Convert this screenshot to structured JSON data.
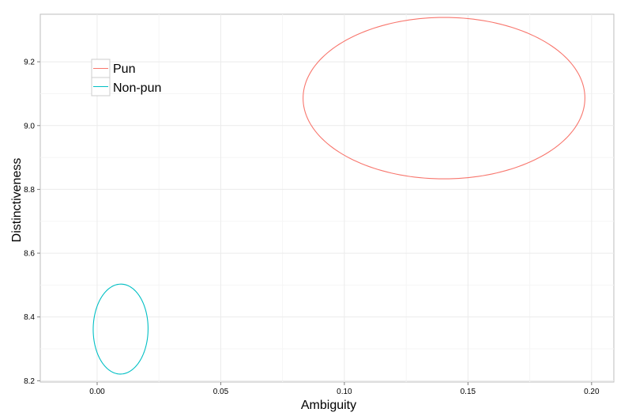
{
  "chart_data": {
    "type": "ellipse",
    "xlabel": "Ambiguity",
    "ylabel": "Distinctiveness",
    "xlim": [
      -0.023,
      0.209
    ],
    "ylim": [
      8.196,
      9.349
    ],
    "x_ticks": [
      0.0,
      0.05,
      0.1,
      0.15,
      0.2
    ],
    "x_tick_labels": [
      "0.00",
      "0.05",
      "0.10",
      "0.15",
      "0.20"
    ],
    "y_ticks": [
      8.2,
      8.4,
      8.6,
      8.8,
      9.0,
      9.2
    ],
    "y_tick_labels": [
      "8.2",
      "8.4",
      "8.6",
      "8.8",
      "9.0",
      "9.2"
    ],
    "grid": true,
    "legend_position": "top-left",
    "series": [
      {
        "name": "Pun",
        "color": "#F8766D",
        "ellipse": {
          "center_x": 0.1403,
          "center_y": 9.086,
          "semi_x": 0.057,
          "semi_y": 0.253,
          "tilt": 0.0064
        }
      },
      {
        "name": "Non-pun",
        "color": "#00BFC4",
        "ellipse": {
          "center_x": 0.0095,
          "center_y": 8.362,
          "semi_x": 0.0111,
          "semi_y": 0.141,
          "tilt": 0.1163
        }
      }
    ]
  }
}
